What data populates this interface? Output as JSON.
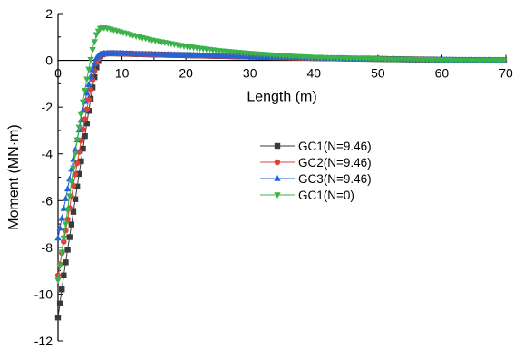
{
  "chart_data": {
    "type": "line",
    "title": "",
    "xlabel": "Length (m)",
    "ylabel": "Moment (MN·m)",
    "xlim": [
      0,
      70
    ],
    "ylim": [
      -12,
      2
    ],
    "x_ticks": [
      0,
      10,
      20,
      30,
      40,
      50,
      60,
      70
    ],
    "y_ticks": [
      -12,
      -10,
      -8,
      -6,
      -4,
      -2,
      0,
      2
    ],
    "x_tick_labels": [
      "0",
      "10",
      "20",
      "30",
      "40",
      "50",
      "60",
      "70"
    ],
    "y_tick_labels": [
      "-12",
      "-10",
      "-8",
      "-6",
      "-4",
      "-2",
      "0",
      "2"
    ],
    "grid": false,
    "legend_position": "center-right",
    "series": [
      {
        "name": "GC1(N=9.46)",
        "color": "#3a3a3a",
        "marker": "square",
        "x": [
          0,
          0.5,
          1,
          1.5,
          2,
          2.5,
          3,
          3.5,
          4,
          4.5,
          5,
          5.5,
          6,
          6.5,
          7,
          8,
          10,
          12,
          15,
          20,
          25,
          30,
          35,
          40,
          45,
          50,
          55,
          60,
          65,
          70
        ],
        "y": [
          -11.0,
          -10.0,
          -9.0,
          -8.1,
          -7.2,
          -6.3,
          -5.4,
          -4.5,
          -3.6,
          -2.7,
          -1.8,
          -1.0,
          -0.3,
          0.15,
          0.28,
          0.3,
          0.29,
          0.27,
          0.25,
          0.22,
          0.19,
          0.16,
          0.13,
          0.1,
          0.08,
          0.06,
          0.04,
          0.02,
          0.01,
          0.0
        ]
      },
      {
        "name": "GC2(N=9.46)",
        "color": "#e0403a",
        "marker": "circle",
        "x": [
          0,
          0.5,
          1,
          1.5,
          2,
          2.5,
          3,
          3.5,
          4,
          4.5,
          5,
          5.5,
          6,
          6.5,
          7,
          8,
          10,
          12,
          15,
          20,
          25,
          30,
          35,
          40,
          45,
          50,
          55,
          60,
          65,
          70
        ],
        "y": [
          -9.2,
          -8.4,
          -7.6,
          -6.8,
          -6.0,
          -5.2,
          -4.4,
          -3.6,
          -2.8,
          -2.1,
          -1.4,
          -0.7,
          -0.1,
          0.2,
          0.28,
          0.3,
          0.29,
          0.27,
          0.25,
          0.22,
          0.19,
          0.16,
          0.13,
          0.1,
          0.08,
          0.06,
          0.04,
          0.02,
          0.01,
          0.0
        ]
      },
      {
        "name": "GC3(N=9.46)",
        "color": "#2563d6",
        "marker": "triangle-up",
        "x": [
          0,
          0.5,
          1,
          1.5,
          2,
          2.5,
          3,
          3.5,
          4,
          4.5,
          5,
          5.5,
          6,
          6.5,
          7,
          8,
          10,
          12,
          15,
          20,
          25,
          30,
          35,
          40,
          45,
          50,
          55,
          60,
          65,
          70
        ],
        "y": [
          -7.6,
          -6.9,
          -6.2,
          -5.5,
          -4.8,
          -4.1,
          -3.4,
          -2.7,
          -2.0,
          -1.4,
          -0.8,
          -0.3,
          0.1,
          0.25,
          0.3,
          0.31,
          0.3,
          0.28,
          0.26,
          0.23,
          0.2,
          0.17,
          0.14,
          0.11,
          0.08,
          0.06,
          0.04,
          0.02,
          0.01,
          0.0
        ]
      },
      {
        "name": "GC1(N=0)",
        "color": "#3bb34a",
        "marker": "triangle-down",
        "x": [
          0,
          0.5,
          1,
          1.5,
          2,
          2.5,
          3,
          3.5,
          4,
          4.5,
          5,
          5.5,
          6,
          6.5,
          7,
          8,
          10,
          12,
          15,
          20,
          25,
          30,
          35,
          40,
          45,
          50,
          55,
          60,
          65,
          70
        ],
        "y": [
          -9.4,
          -8.4,
          -7.4,
          -6.4,
          -5.4,
          -4.4,
          -3.4,
          -2.5,
          -1.6,
          -0.8,
          -0.1,
          0.6,
          1.1,
          1.35,
          1.4,
          1.35,
          1.2,
          1.05,
          0.85,
          0.6,
          0.42,
          0.3,
          0.2,
          0.13,
          0.09,
          0.06,
          0.04,
          0.02,
          0.01,
          0.0
        ]
      }
    ]
  }
}
